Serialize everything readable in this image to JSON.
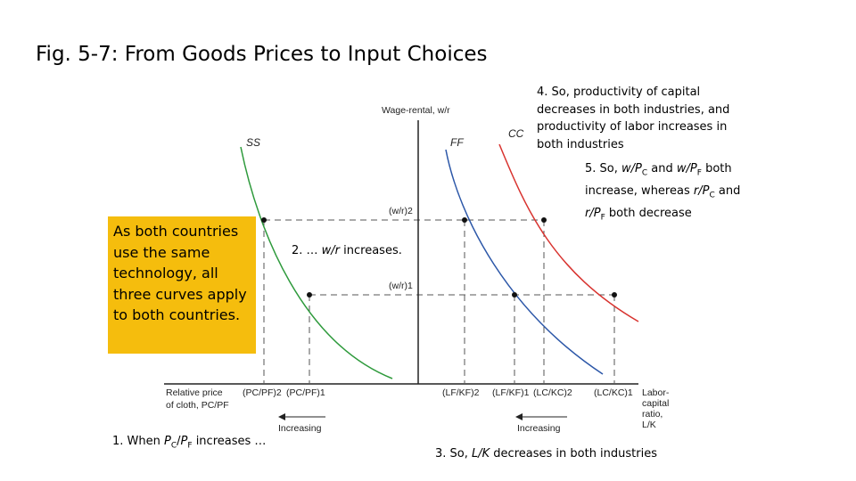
{
  "title": "Fig. 5-7: From Goods Prices to Input Choices",
  "callout": "As both countries use the same technology, all three curves apply to both countries.",
  "notes": {
    "n1": {
      "pre": "1. When ",
      "v1": "P",
      "s1": "C",
      "mid": "/",
      "v2": "P",
      "s2": "F",
      "post": " increases …"
    },
    "n2": {
      "pre": "2. … ",
      "var": "w/r",
      "post": " increases."
    },
    "n3": {
      "pre": "3. So, ",
      "var": "L/K",
      "post": " decreases in both industries"
    },
    "n4": "4. So, productivity of capital decreases in both industries, and productivity of labor increases in both industries",
    "n5": {
      "a": "5. So, ",
      "b": "w/P",
      "bs": "C",
      "c": " and ",
      "d": "w/P",
      "ds": "F",
      "e": " both increase, whereas ",
      "f": "r/P",
      "fs": "C",
      "g": " and ",
      "h": "r/P",
      "hs": "F",
      "i": " both decrease"
    }
  },
  "axes": {
    "y_label": "Wage-rental, w/r",
    "x_left_label_1": "Relative price",
    "x_left_label_2": "of cloth, PC/PF",
    "x_right_label_1": "Labor-",
    "x_right_label_2": "capital",
    "x_right_label_3": "ratio,",
    "x_right_label_4": "L/K",
    "level_2": "(w/r)2",
    "level_1": "(w/r)1",
    "arrow_left": "Increasing",
    "arrow_right": "Increasing"
  },
  "ticks_left": [
    "(PC/PF)2",
    "(PC/PF)1"
  ],
  "ticks_right": [
    "(LF/KF)2",
    "(LF/KF)1",
    "(LC/KC)2",
    "(LC/KC)1"
  ],
  "curves": {
    "ss": {
      "label": "SS",
      "color": "#2e9a3c"
    },
    "ff": {
      "label": "FF",
      "color": "#2c57a8"
    },
    "cc": {
      "label": "CC",
      "color": "#d8332f"
    }
  }
}
